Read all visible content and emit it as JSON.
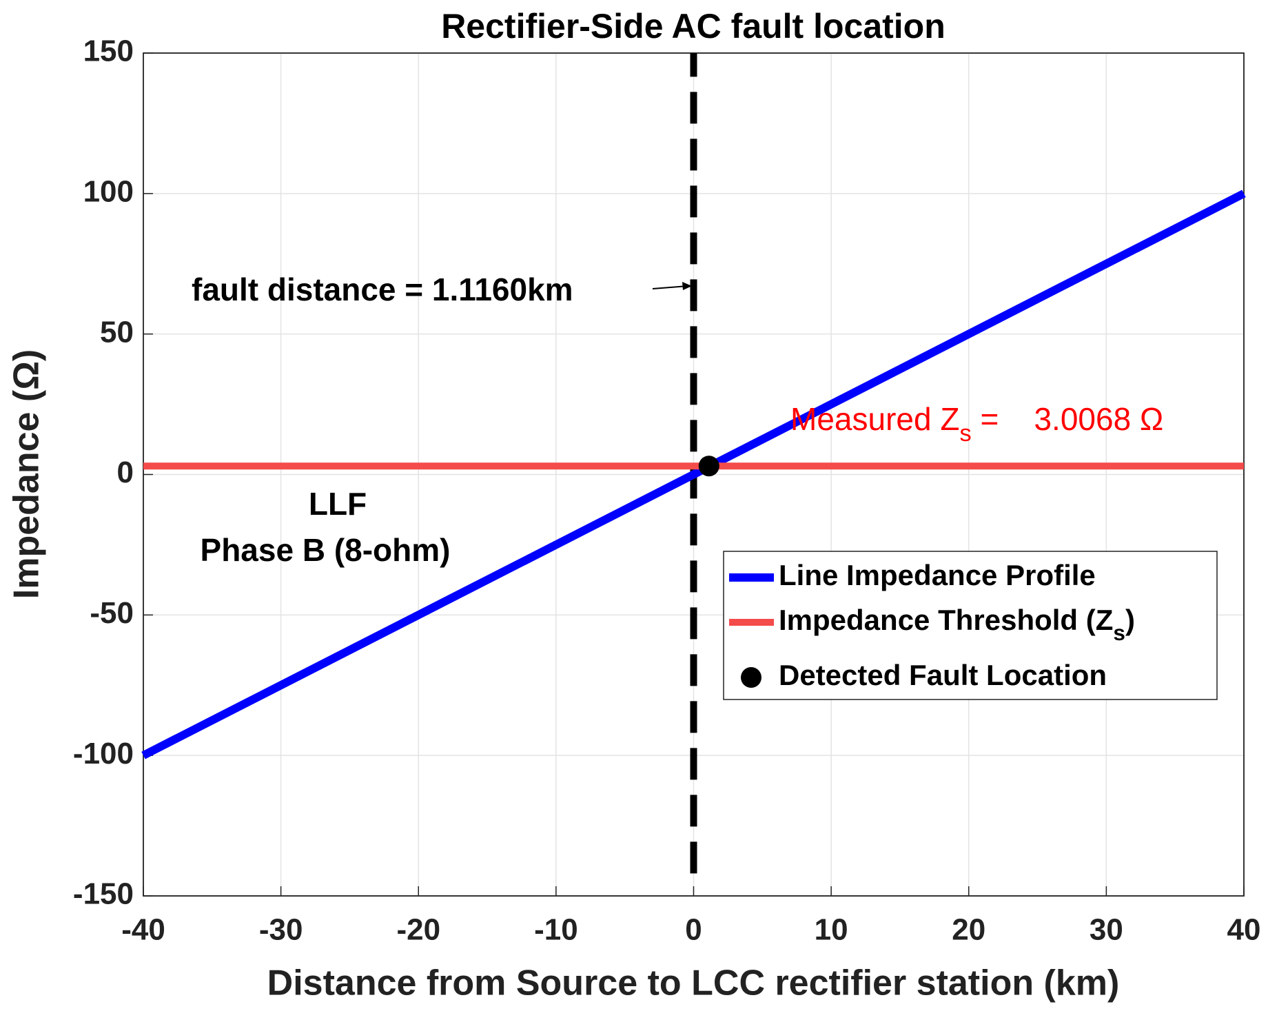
{
  "chart_data": {
    "type": "line",
    "title": "Rectifier-Side AC fault location",
    "x_label": "Distance from Source to LCC rectifier station (km)",
    "y_label": "Impedance (Ω)",
    "xlim": [
      -40,
      40
    ],
    "ylim": [
      -150,
      150
    ],
    "xticks": [
      -40,
      -30,
      -20,
      -10,
      0,
      10,
      20,
      30,
      40
    ],
    "yticks": [
      -150,
      -100,
      -50,
      0,
      50,
      100,
      150
    ],
    "grid": true,
    "legend": "lower right",
    "series": [
      {
        "name": [
          "Line Impedance Profile"
        ],
        "color": "#0000ff",
        "kind": "line",
        "x": [
          -40,
          40
        ],
        "y": [
          -100,
          100
        ]
      },
      {
        "name": [
          "Impedance Threshold (Z",
          "s",
          ")"
        ],
        "color": "#f44b4b",
        "kind": "line",
        "x": [
          -40,
          40
        ],
        "y": [
          3.0068,
          3.0068
        ]
      },
      {
        "name": [
          "Detected Fault Location"
        ],
        "color": "#000000",
        "kind": "marker",
        "x": [
          1.116
        ],
        "y": [
          3.0068
        ]
      }
    ],
    "reference_line": {
      "color": "#000000",
      "x": [
        0,
        0
      ],
      "y": [
        -142,
        150
      ]
    },
    "annotations": [
      {
        "text": [
          "fault distance = 1.1160km"
        ],
        "color": "#000000"
      },
      {
        "text": [
          "LLF"
        ],
        "color": "#000000"
      },
      {
        "text": [
          "Phase B (8-ohm)"
        ],
        "color": "#000000"
      },
      {
        "text": [
          "Measured Z",
          "s",
          " =    3.0068 Ω"
        ],
        "color": "#ff0000"
      }
    ]
  }
}
